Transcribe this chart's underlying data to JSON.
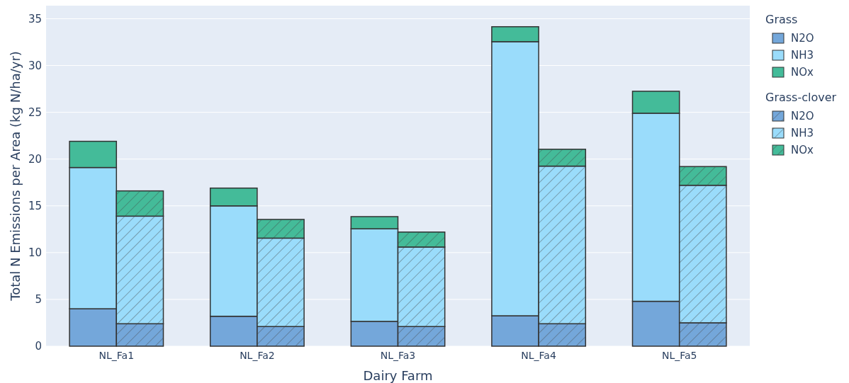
{
  "chart_data": {
    "type": "bar",
    "stacked": true,
    "xlabel": "Dairy Farm",
    "ylabel": "Total N Emissions per Area (kg N/ha/yr)",
    "categories": [
      "NL_Fa1",
      null,
      null,
      "NL_Fa2",
      null,
      null,
      "NL_Fa3",
      null,
      null,
      "NL_Fa4",
      null,
      null,
      "NL_Fa5",
      null
    ],
    "legend_title": [
      "Grass",
      "Grass-clover"
    ],
    "series": [
      {
        "name": "N2O",
        "color": "#74a7da",
        "values": [
          4.0,
          null,
          null,
          3.2,
          null,
          null,
          2.65,
          null,
          null,
          3.25,
          null,
          null,
          4.8,
          null
        ]
      },
      {
        "name": "NH3",
        "color": "#9adcfb",
        "values": [
          15.1,
          null,
          null,
          11.8,
          null,
          null,
          9.9,
          null,
          null,
          29.3,
          null,
          null,
          20.1,
          null
        ]
      },
      {
        "name": "NOx",
        "color": "#44bb99",
        "values": [
          2.8,
          null,
          null,
          1.9,
          null,
          null,
          1.3,
          null,
          null,
          1.6,
          null,
          null,
          2.35,
          null
        ]
      },
      {
        "name": "N2O",
        "color": "#74a7da",
        "values": [
          null,
          2.4,
          null,
          null,
          2.1,
          null,
          null,
          2.1,
          null,
          null,
          2.4,
          null,
          null,
          2.5
        ]
      },
      {
        "name": "NH3",
        "color": "#9adcfb",
        "values": [
          null,
          11.5,
          null,
          null,
          9.45,
          null,
          null,
          8.5,
          null,
          null,
          16.85,
          null,
          null,
          14.7
        ]
      },
      {
        "name": "NOx",
        "color": "#44bb99",
        "values": [
          null,
          2.7,
          null,
          null,
          2.0,
          null,
          null,
          1.6,
          null,
          null,
          1.8,
          null,
          null,
          2.0
        ]
      }
    ],
    "ylim": [
      0,
      36.4
    ],
    "yticks": [
      0,
      5,
      10,
      15,
      20,
      25,
      30,
      35
    ],
    "grid": "y",
    "legend": "top right"
  }
}
